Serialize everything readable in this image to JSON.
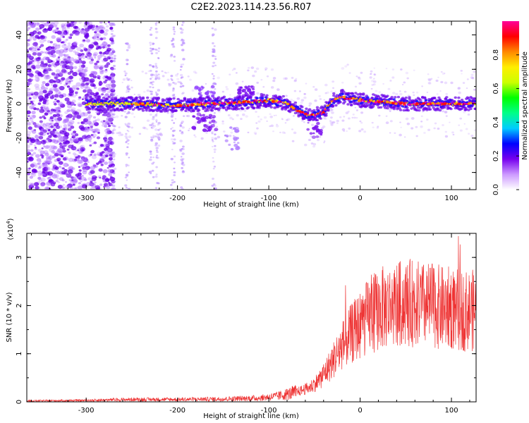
{
  "title": "C2E2.2023.114.23.56.R07",
  "chart_data": [
    {
      "type": "heatmap",
      "id": "spectrogram",
      "xlabel": "Height of straight line (km)",
      "ylabel": "Frequency (Hz)",
      "xlim": [
        -365,
        127
      ],
      "ylim": [
        -50,
        48
      ],
      "x_ticks": [
        -300,
        -200,
        -100,
        0,
        100
      ],
      "x_tick_labels": [
        "-300",
        "-200",
        "-100",
        "0",
        "100"
      ],
      "y_ticks": [
        -40,
        -20,
        0,
        20,
        40
      ],
      "y_tick_labels": [
        "-40",
        "-20",
        "0",
        "20",
        "40"
      ],
      "ridge_line": {
        "description_points_x": [
          -300,
          -250,
          -200,
          -160,
          -120,
          -100,
          -80,
          -65,
          -55,
          -40,
          -30,
          -20,
          0,
          50,
          100,
          127
        ],
        "description_points_y": [
          0,
          0,
          -1,
          0,
          1,
          2,
          0,
          -5,
          -7,
          -5,
          2,
          4,
          2,
          0,
          0,
          0
        ]
      },
      "colorbar": {
        "label": "Normalized spectral amplitude",
        "range": [
          0,
          1
        ],
        "ticks": [
          0.0,
          0.2,
          0.4,
          0.6,
          0.8
        ],
        "tick_labels": [
          "0.0",
          "0.2",
          "0.4",
          "0.6",
          "0.8"
        ],
        "colors": [
          "#ffffff",
          "#cc99ff",
          "#7700ee",
          "#0000ff",
          "#00ccff",
          "#00ff88",
          "#00ff00",
          "#ccff00",
          "#ffee00",
          "#ff8800",
          "#ff0000",
          "#ff0099"
        ]
      }
    },
    {
      "type": "line",
      "id": "snr",
      "xlabel": "Height of straight line (km)",
      "ylabel": "SNR (10 * v/v)",
      "y_multiplier_label": "(x10",
      "y_multiplier_exp": "4",
      "y_multiplier_close": ")",
      "xlim": [
        -365,
        127
      ],
      "ylim": [
        0,
        3.5
      ],
      "x_ticks": [
        -300,
        -200,
        -100,
        0,
        100
      ],
      "x_tick_labels": [
        "-300",
        "-200",
        "-100",
        "0",
        "100"
      ],
      "y_ticks": [
        0,
        1,
        2,
        3
      ],
      "y_tick_labels": [
        "0",
        "1",
        "2",
        "3"
      ],
      "line_color": "#ee3333",
      "envelope_x": [
        -365,
        -300,
        -250,
        -200,
        -150,
        -110,
        -90,
        -70,
        -55,
        -45,
        -35,
        -25,
        -15,
        -5,
        5,
        15,
        25,
        35,
        50,
        60,
        70,
        80,
        90,
        100,
        110,
        127
      ],
      "envelope_y": [
        0.02,
        0.03,
        0.05,
        0.05,
        0.06,
        0.08,
        0.12,
        0.2,
        0.3,
        0.45,
        0.7,
        1.0,
        1.3,
        1.5,
        1.7,
        1.85,
        1.95,
        2.0,
        2.05,
        2.05,
        2.0,
        2.0,
        1.95,
        1.95,
        1.9,
        1.9
      ]
    }
  ]
}
